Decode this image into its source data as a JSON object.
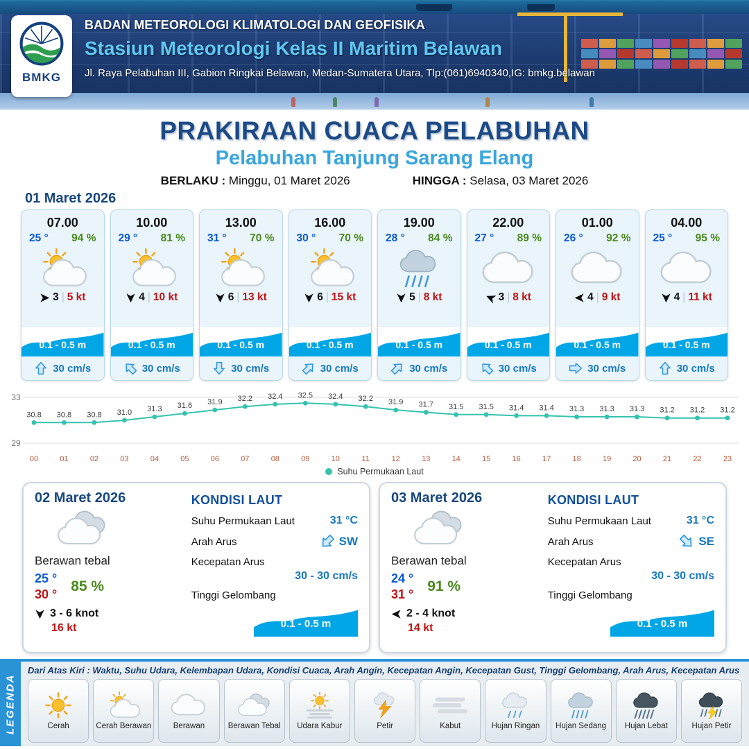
{
  "header": {
    "logo": "BMKG",
    "agency": "BADAN METEOROLOGI KLIMATOLOGI DAN GEOFISIKA",
    "station": "Stasiun Meteorologi Kelas II Maritim Belawan",
    "address": "Jl. Raya Pelabuhan III, Gabion Ringkai Belawan, Medan-Sumatera Utara, Tlp:(061)6940340,IG: bmkg.belawan"
  },
  "title": {
    "main": "PRAKIRAAN CUACA PELABUHAN",
    "sub": "Pelabuhan Tanjung Sarang Elang",
    "berlaku_label": "BERLAKU :",
    "berlaku_value": "Minggu, 01 Maret 2026",
    "hingga_label": "HINGGA :",
    "hingga_value": "Selasa, 03 Maret 2026"
  },
  "ui": {
    "divider": "|"
  },
  "day1": {
    "date": "01 Maret 2026",
    "hours": [
      {
        "time": "07.00",
        "temp": "25 °",
        "humidity": "94 %",
        "icon": "cerah-berawan",
        "wind_dir": "E",
        "wind_speed": "3",
        "gust": "5 kt",
        "wave": "0.1 - 0.5 m",
        "current_dir": "N",
        "current_speed": "30 cm/s"
      },
      {
        "time": "10.00",
        "temp": "29 °",
        "humidity": "81 %",
        "icon": "cerah-berawan",
        "wind_dir": "S",
        "wind_speed": "4",
        "gust": "10 kt",
        "wave": "0.1 - 0.5 m",
        "current_dir": "NW",
        "current_speed": "30 cm/s"
      },
      {
        "time": "13.00",
        "temp": "31 °",
        "humidity": "70 %",
        "icon": "cerah-berawan",
        "wind_dir": "S",
        "wind_speed": "6",
        "gust": "13 kt",
        "wave": "0.1 - 0.5 m",
        "current_dir": "S",
        "current_speed": "30 cm/s"
      },
      {
        "time": "16.00",
        "temp": "30 °",
        "humidity": "70 %",
        "icon": "cerah-berawan",
        "wind_dir": "S",
        "wind_speed": "6",
        "gust": "15 kt",
        "wave": "0.1 - 0.5 m",
        "current_dir": "NE",
        "current_speed": "30 cm/s"
      },
      {
        "time": "19.00",
        "temp": "28 °",
        "humidity": "84 %",
        "icon": "hujan-sedang",
        "wind_dir": "S",
        "wind_speed": "5",
        "gust": "8 kt",
        "wave": "0.1 - 0.5 m",
        "current_dir": "NE",
        "current_speed": "30 cm/s"
      },
      {
        "time": "22.00",
        "temp": "27 °",
        "humidity": "89 %",
        "icon": "berawan",
        "wind_dir": "WNW",
        "wind_speed": "3",
        "gust": "8 kt",
        "wave": "0.1 - 0.5 m",
        "current_dir": "NW",
        "current_speed": "30 cm/s"
      },
      {
        "time": "01.00",
        "temp": "26 °",
        "humidity": "92 %",
        "icon": "berawan",
        "wind_dir": "W",
        "wind_speed": "4",
        "gust": "9 kt",
        "wave": "0.1 - 0.5 m",
        "current_dir": "E",
        "current_speed": "30 cm/s"
      },
      {
        "time": "04.00",
        "temp": "25 °",
        "humidity": "95 %",
        "icon": "berawan",
        "wind_dir": "S",
        "wind_speed": "4",
        "gust": "11 kt",
        "wave": "0.1 - 0.5 m",
        "current_dir": "N",
        "current_speed": "30 cm/s"
      }
    ]
  },
  "chart_data": {
    "type": "line",
    "legend": "Suhu Permukaan Laut",
    "x": [
      "00",
      "01",
      "02",
      "03",
      "04",
      "05",
      "06",
      "07",
      "08",
      "09",
      "10",
      "11",
      "12",
      "13",
      "14",
      "15",
      "16",
      "17",
      "18",
      "19",
      "20",
      "21",
      "22",
      "23"
    ],
    "values": [
      30.8,
      30.8,
      30.8,
      31.0,
      31.3,
      31.6,
      31.9,
      32.2,
      32.4,
      32.5,
      32.4,
      32.2,
      31.9,
      31.7,
      31.5,
      31.5,
      31.4,
      31.4,
      31.3,
      31.3,
      31.3,
      31.2,
      31.2,
      31.2
    ],
    "ylabel": "",
    "xlabel": "",
    "ylim": [
      29,
      33
    ],
    "grid": true,
    "legend_position": "bottom",
    "line_color": "#35c2ae"
  },
  "days": [
    {
      "date": "02 Maret 2026",
      "condition": "Berawan tebal",
      "icon": "berawan-tebal",
      "temp_min": "25 °",
      "temp_max": "30 °",
      "humidity": "85 %",
      "wind_dir": "S",
      "wind_range": "3  - 6 knot",
      "gust": "16 kt",
      "sea": {
        "heading": "KONDISI LAUT",
        "sst_label": "Suhu Permukaan Laut",
        "sst": "31 °C",
        "current_dir_label": "Arah Arus",
        "current_dir": "SW",
        "current_speed_label": "Kecepatan Arus",
        "current_speed": "30  - 30 cm/s",
        "wave_label": "Tinggi Gelombang",
        "wave": "0.1 - 0.5 m"
      }
    },
    {
      "date": "03 Maret 2026",
      "condition": "Berawan tebal",
      "icon": "berawan-tebal",
      "temp_min": "24 °",
      "temp_max": "31 °",
      "humidity": "91 %",
      "wind_dir": "W",
      "wind_range": "2  - 4 knot",
      "gust": "14 kt",
      "sea": {
        "heading": "KONDISI LAUT",
        "sst_label": "Suhu Permukaan Laut",
        "sst": "31 °C",
        "current_dir_label": "Arah Arus",
        "current_dir": "SE",
        "current_speed_label": "Kecepatan Arus",
        "current_speed": "30  - 30 cm/s",
        "wave_label": "Tinggi Gelombang",
        "wave": "0.1 - 0.5 m"
      }
    }
  ],
  "legend": {
    "vertical_label": "LEGENDA",
    "description": "Dari Atas Kiri : Waktu, Suhu Udara, Kelembapan Udara, Kondisi Cuaca, Arah Angin, Kecepatan Angin, Kecepatan Gust, Tinggi Gelombang, Arah Arus, Kecepatan Arus",
    "items": [
      {
        "label": "Cerah",
        "icon": "cerah"
      },
      {
        "label": "Cerah Berawan",
        "icon": "cerah-berawan"
      },
      {
        "label": "Berawan",
        "icon": "berawan"
      },
      {
        "label": "Berawan Tebal",
        "icon": "berawan-tebal"
      },
      {
        "label": "Udara Kabur",
        "icon": "udara-kabur"
      },
      {
        "label": "Petir",
        "icon": "petir"
      },
      {
        "label": "Kabut",
        "icon": "kabut"
      },
      {
        "label": "Hujan Ringan",
        "icon": "hujan-ringan"
      },
      {
        "label": "Hujan Sedang",
        "icon": "hujan-sedang"
      },
      {
        "label": "Hujan Lebat",
        "icon": "hujan-lebat"
      },
      {
        "label": "Hujan Petir",
        "icon": "hujan-petir"
      }
    ]
  },
  "colors": {
    "navy": "#17477f",
    "light_blue": "#3aa6dd",
    "temp_blue": "#0a5ad4",
    "humidity_green": "#4a8a1c",
    "alert_red": "#c01414",
    "wave_blue": "#00a6e6",
    "current_text_blue": "#1779c0",
    "chart_line_teal": "#35c2ae",
    "legend_bar_blue": "#2a93d5"
  }
}
